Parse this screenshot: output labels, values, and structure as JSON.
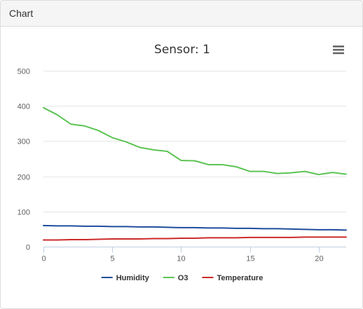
{
  "panel": {
    "heading": "Chart"
  },
  "menu": {
    "icon": "hamburger-menu-icon"
  },
  "chart_data": {
    "type": "line",
    "title": "Sensor: 1",
    "xlabel": "",
    "ylabel": "",
    "xlim": [
      0,
      22
    ],
    "ylim": [
      0,
      500
    ],
    "x_ticks": [
      0,
      5,
      10,
      15,
      20
    ],
    "y_ticks": [
      0,
      100,
      200,
      300,
      400,
      500
    ],
    "grid": true,
    "legend_position": "bottom",
    "x": [
      0,
      1,
      2,
      3,
      4,
      5,
      6,
      7,
      8,
      9,
      10,
      11,
      12,
      13,
      14,
      15,
      16,
      17,
      18,
      19,
      20,
      21,
      22
    ],
    "series": [
      {
        "name": "Humidity",
        "color": "#1f4e9c",
        "values": [
          60,
          59,
          59,
          58,
          58,
          57,
          57,
          56,
          56,
          55,
          54,
          54,
          53,
          53,
          52,
          52,
          51,
          51,
          50,
          49,
          48,
          48,
          47
        ]
      },
      {
        "name": "O3",
        "color": "#5cc454",
        "values": [
          395,
          375,
          348,
          343,
          330,
          310,
          298,
          282,
          275,
          271,
          245,
          244,
          233,
          233,
          227,
          214,
          214,
          208,
          210,
          214,
          205,
          211,
          206
        ]
      },
      {
        "name": "Temperature",
        "color": "#cc2a2a",
        "values": [
          19,
          19,
          20,
          20,
          21,
          22,
          22,
          22,
          23,
          23,
          24,
          24,
          25,
          25,
          25,
          26,
          26,
          26,
          26,
          27,
          27,
          27,
          27
        ]
      }
    ]
  }
}
